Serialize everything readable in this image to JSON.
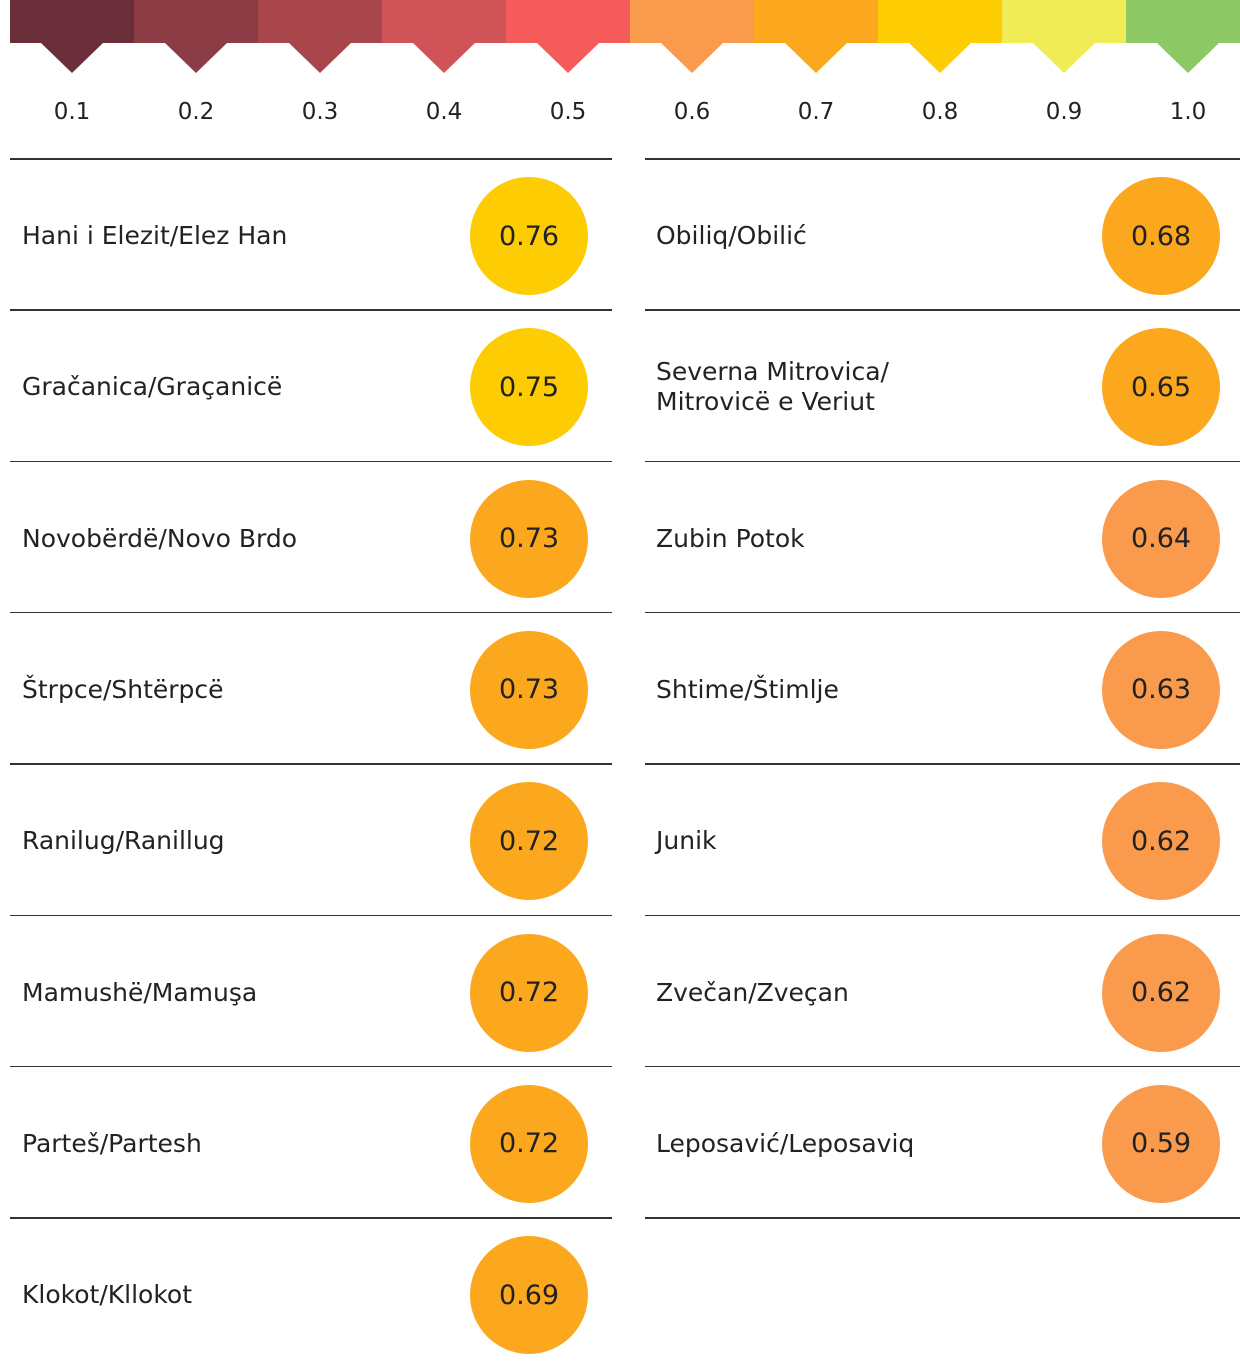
{
  "scale": [
    {
      "label": "0.1",
      "color": "#6b2f3b"
    },
    {
      "label": "0.2",
      "color": "#8c3c45"
    },
    {
      "label": "0.3",
      "color": "#a8464c"
    },
    {
      "label": "0.4",
      "color": "#d05357"
    },
    {
      "label": "0.5",
      "color": "#f55b5b"
    },
    {
      "label": "0.6",
      "color": "#f99a4c"
    },
    {
      "label": "0.7",
      "color": "#fca81e"
    },
    {
      "label": "0.8",
      "color": "#fdcc02"
    },
    {
      "label": "0.9",
      "color": "#f0ec55"
    },
    {
      "label": "1.0",
      "color": "#8cc863"
    }
  ],
  "columns": [
    [
      {
        "name": "Hani i Elezit/Elez Han",
        "value": "0.76",
        "color": "#fdcc02"
      },
      {
        "name": "Gračanica/Graçanicë",
        "value": "0.75",
        "color": "#fdcc02"
      },
      {
        "name": "Novobërdë/Novo Brdo",
        "value": "0.73",
        "color": "#fca81e"
      },
      {
        "name": "Štrpce/Shtërpcë",
        "value": "0.73",
        "color": "#fca81e"
      },
      {
        "name": "Ranilug/Ranillug",
        "value": "0.72",
        "color": "#fca81e"
      },
      {
        "name": "Mamushë/Mamuşa",
        "value": "0.72",
        "color": "#fca81e"
      },
      {
        "name": "Parteš/Partesh",
        "value": "0.72",
        "color": "#fca81e"
      },
      {
        "name": "Klokot/Kllokot",
        "value": "0.69",
        "color": "#fca81e"
      }
    ],
    [
      {
        "name": "Obiliq/Obilić",
        "value": "0.68",
        "color": "#fca81e"
      },
      {
        "name": "Severna Mitrovica/\nMitrovicë e Veriut",
        "value": "0.65",
        "color": "#fca81e"
      },
      {
        "name": "Zubin Potok",
        "value": "0.64",
        "color": "#f99a4c"
      },
      {
        "name": "Shtime/Štimlje",
        "value": "0.63",
        "color": "#f99a4c"
      },
      {
        "name": "Junik",
        "value": "0.62",
        "color": "#f99a4c"
      },
      {
        "name": "Zvečan/Zveçan",
        "value": "0.62",
        "color": "#f99a4c"
      },
      {
        "name": "Leposavić/Leposaviq",
        "value": "0.59",
        "color": "#f99a4c"
      }
    ]
  ]
}
